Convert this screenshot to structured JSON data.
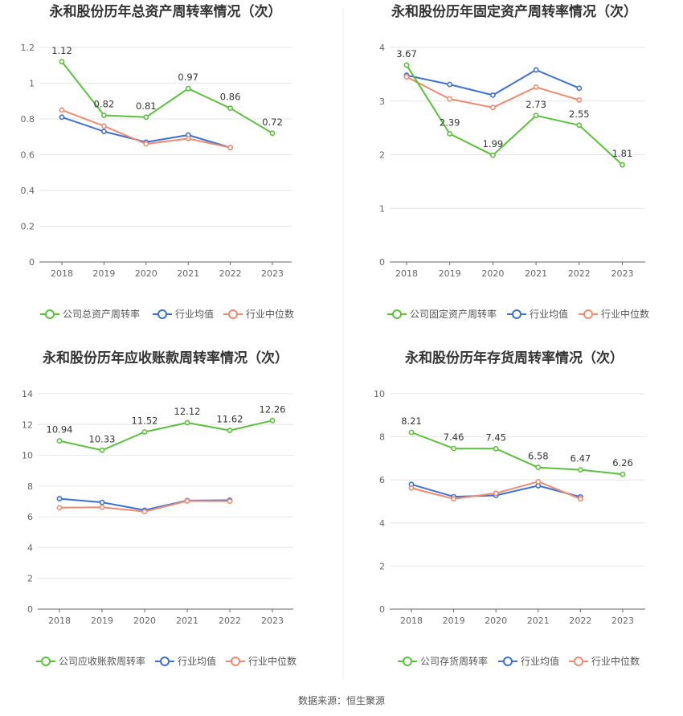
{
  "source": "数据来源：恒生聚源",
  "colors": {
    "company": "#5ac13a",
    "avg": "#3c70d4",
    "median": "#f08a6e"
  },
  "chart_data": [
    {
      "type": "line",
      "title": "永和股份历年总资产周转率情况（次）",
      "categories": [
        "2018",
        "2019",
        "2020",
        "2021",
        "2022",
        "2023"
      ],
      "ylim": [
        0,
        1.2
      ],
      "yticks": [
        0,
        0.2,
        0.4,
        0.6,
        0.8,
        1,
        1.2
      ],
      "ytick_labels": [
        "0",
        "0.2",
        "0.4",
        "0.6",
        "0.8",
        "1",
        "1.2"
      ],
      "legend_position": "bottom",
      "series": [
        {
          "name": "公司总资产周转率",
          "role": "company",
          "values": [
            1.12,
            0.82,
            0.81,
            0.97,
            0.86,
            0.72
          ],
          "labels": [
            "1.12",
            "0.82",
            "0.81",
            "0.97",
            "0.86",
            "0.72"
          ]
        },
        {
          "name": "行业均值",
          "role": "avg",
          "values": [
            0.81,
            0.73,
            0.67,
            0.71,
            0.64,
            null
          ]
        },
        {
          "name": "行业中位数",
          "role": "median",
          "values": [
            0.85,
            0.76,
            0.66,
            0.69,
            0.64,
            null
          ]
        }
      ]
    },
    {
      "type": "line",
      "title": "永和股份历年固定资产周转率情况（次）",
      "categories": [
        "2018",
        "2019",
        "2020",
        "2021",
        "2022",
        "2023"
      ],
      "ylim": [
        0,
        4
      ],
      "yticks": [
        0,
        1,
        2,
        3,
        4
      ],
      "ytick_labels": [
        "0",
        "1",
        "2",
        "3",
        "4"
      ],
      "legend_position": "bottom",
      "series": [
        {
          "name": "公司固定资产周转率",
          "role": "company",
          "values": [
            3.67,
            2.39,
            1.99,
            2.73,
            2.55,
            1.81
          ],
          "labels": [
            "3.67",
            "2.39",
            "1.99",
            "2.73",
            "2.55",
            "1.81"
          ]
        },
        {
          "name": "行业均值",
          "role": "avg",
          "values": [
            3.48,
            3.31,
            3.11,
            3.58,
            3.24,
            null
          ]
        },
        {
          "name": "行业中位数",
          "role": "median",
          "values": [
            3.45,
            3.04,
            2.88,
            3.26,
            3.02,
            null
          ]
        }
      ]
    },
    {
      "type": "line",
      "title": "永和股份历年应收账款周转率情况（次）",
      "categories": [
        "2018",
        "2019",
        "2020",
        "2021",
        "2022",
        "2023"
      ],
      "ylim": [
        0,
        14
      ],
      "yticks": [
        0,
        2,
        4,
        6,
        8,
        10,
        12,
        14
      ],
      "ytick_labels": [
        "0",
        "2",
        "4",
        "6",
        "8",
        "10",
        "12",
        "14"
      ],
      "legend_position": "bottom",
      "series": [
        {
          "name": "公司应收账款周转率",
          "role": "company",
          "values": [
            10.94,
            10.33,
            11.52,
            12.12,
            11.62,
            12.26
          ],
          "labels": [
            "10.94",
            "10.33",
            "11.52",
            "12.12",
            "11.62",
            "12.26"
          ]
        },
        {
          "name": "行业均值",
          "role": "avg",
          "values": [
            7.18,
            6.94,
            6.43,
            7.06,
            7.08,
            null
          ]
        },
        {
          "name": "行业中位数",
          "role": "median",
          "values": [
            6.59,
            6.62,
            6.34,
            7.03,
            7.02,
            null
          ]
        }
      ]
    },
    {
      "type": "line",
      "title": "永和股份历年存货周转率情况（次）",
      "categories": [
        "2018",
        "2019",
        "2020",
        "2021",
        "2022",
        "2023"
      ],
      "ylim": [
        0,
        10
      ],
      "yticks": [
        0,
        2,
        4,
        6,
        8,
        10
      ],
      "ytick_labels": [
        "0",
        "2",
        "4",
        "6",
        "8",
        "10"
      ],
      "legend_position": "bottom",
      "series": [
        {
          "name": "公司存货周转率",
          "role": "company",
          "values": [
            8.21,
            7.46,
            7.45,
            6.58,
            6.47,
            6.26
          ],
          "labels": [
            "8.21",
            "7.46",
            "7.45",
            "6.58",
            "6.47",
            "6.26"
          ]
        },
        {
          "name": "行业均值",
          "role": "avg",
          "values": [
            5.79,
            5.22,
            5.28,
            5.73,
            5.21,
            null
          ]
        },
        {
          "name": "行业中位数",
          "role": "median",
          "values": [
            5.62,
            5.12,
            5.38,
            5.92,
            5.12,
            null
          ]
        }
      ]
    }
  ]
}
